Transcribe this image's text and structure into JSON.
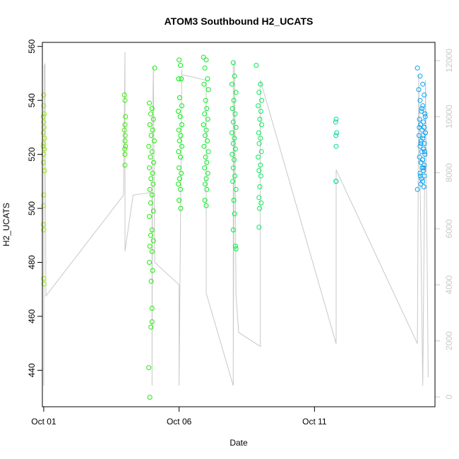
{
  "chart_data": {
    "type": "scatter",
    "title": "ATOM3 Southbound H2_UCATS",
    "xlabel": "Date",
    "ylabel": "H2_UCATS",
    "x_unit": "days",
    "xlim": [
      0.95,
      15.45
    ],
    "ylim": [
      426.5,
      561.5
    ],
    "x_ticks": [
      {
        "value": 1,
        "label": "Oct 01"
      },
      {
        "value": 6,
        "label": "Oct 06"
      },
      {
        "value": 11,
        "label": "Oct 11"
      }
    ],
    "y_ticks": [
      440,
      460,
      480,
      500,
      520,
      540,
      560
    ],
    "right_axis": {
      "ylim": [
        -350,
        12650
      ],
      "ticks": [
        0,
        2000,
        4000,
        6000,
        8000,
        10000,
        12000
      ],
      "color": "#c8c8c8"
    },
    "grid": false,
    "point_color_scale": [
      "#99ee00",
      "#00ee00",
      "#00ee88",
      "#0099ff"
    ],
    "h2_points": [
      {
        "x": 1.0,
        "y": 542
      },
      {
        "x": 1.0,
        "y": 538
      },
      {
        "x": 1.02,
        "y": 535
      },
      {
        "x": 0.98,
        "y": 534
      },
      {
        "x": 1.0,
        "y": 532
      },
      {
        "x": 1.01,
        "y": 530
      },
      {
        "x": 0.99,
        "y": 528
      },
      {
        "x": 1.03,
        "y": 526
      },
      {
        "x": 1.0,
        "y": 524
      },
      {
        "x": 0.98,
        "y": 523
      },
      {
        "x": 1.02,
        "y": 522
      },
      {
        "x": 1.0,
        "y": 520
      },
      {
        "x": 0.99,
        "y": 517
      },
      {
        "x": 1.03,
        "y": 514
      },
      {
        "x": 1.0,
        "y": 505
      },
      {
        "x": 1.0,
        "y": 501
      },
      {
        "x": 0.99,
        "y": 494
      },
      {
        "x": 1.0,
        "y": 492
      },
      {
        "x": 1.0,
        "y": 474
      },
      {
        "x": 1.01,
        "y": 472
      },
      {
        "x": 3.98,
        "y": 542
      },
      {
        "x": 4.0,
        "y": 540
      },
      {
        "x": 4.02,
        "y": 534
      },
      {
        "x": 4.0,
        "y": 531
      },
      {
        "x": 3.98,
        "y": 529
      },
      {
        "x": 4.01,
        "y": 527
      },
      {
        "x": 4.0,
        "y": 525
      },
      {
        "x": 4.02,
        "y": 523
      },
      {
        "x": 3.99,
        "y": 522
      },
      {
        "x": 4.0,
        "y": 520
      },
      {
        "x": 4.0,
        "y": 516
      },
      {
        "x": 4.9,
        "y": 539
      },
      {
        "x": 5.0,
        "y": 537
      },
      {
        "x": 4.95,
        "y": 535
      },
      {
        "x": 5.05,
        "y": 533
      },
      {
        "x": 4.92,
        "y": 531
      },
      {
        "x": 5.02,
        "y": 529
      },
      {
        "x": 4.97,
        "y": 527
      },
      {
        "x": 5.08,
        "y": 525
      },
      {
        "x": 4.88,
        "y": 523
      },
      {
        "x": 5.0,
        "y": 521
      },
      {
        "x": 4.94,
        "y": 519
      },
      {
        "x": 5.06,
        "y": 517
      },
      {
        "x": 4.9,
        "y": 515
      },
      {
        "x": 5.02,
        "y": 513
      },
      {
        "x": 4.96,
        "y": 511
      },
      {
        "x": 5.04,
        "y": 509
      },
      {
        "x": 4.92,
        "y": 507
      },
      {
        "x": 5.0,
        "y": 505
      },
      {
        "x": 4.95,
        "y": 502
      },
      {
        "x": 5.05,
        "y": 499
      },
      {
        "x": 4.9,
        "y": 497
      },
      {
        "x": 5.0,
        "y": 492
      },
      {
        "x": 4.95,
        "y": 490
      },
      {
        "x": 5.05,
        "y": 488
      },
      {
        "x": 4.92,
        "y": 486
      },
      {
        "x": 5.0,
        "y": 484
      },
      {
        "x": 4.9,
        "y": 480
      },
      {
        "x": 5.02,
        "y": 477
      },
      {
        "x": 4.97,
        "y": 473
      },
      {
        "x": 5.0,
        "y": 463
      },
      {
        "x": 5.0,
        "y": 458
      },
      {
        "x": 4.96,
        "y": 456
      },
      {
        "x": 4.88,
        "y": 441
      },
      {
        "x": 4.92,
        "y": 430
      },
      {
        "x": 5.1,
        "y": 552
      },
      {
        "x": 6.0,
        "y": 555
      },
      {
        "x": 6.05,
        "y": 553
      },
      {
        "x": 5.98,
        "y": 548
      },
      {
        "x": 6.08,
        "y": 548
      },
      {
        "x": 6.02,
        "y": 541
      },
      {
        "x": 6.1,
        "y": 538
      },
      {
        "x": 5.97,
        "y": 536
      },
      {
        "x": 6.04,
        "y": 534
      },
      {
        "x": 6.1,
        "y": 531
      },
      {
        "x": 5.99,
        "y": 529
      },
      {
        "x": 6.06,
        "y": 527
      },
      {
        "x": 6.02,
        "y": 525
      },
      {
        "x": 6.1,
        "y": 523
      },
      {
        "x": 5.98,
        "y": 521
      },
      {
        "x": 6.05,
        "y": 519
      },
      {
        "x": 6.0,
        "y": 515
      },
      {
        "x": 6.08,
        "y": 513
      },
      {
        "x": 6.02,
        "y": 511
      },
      {
        "x": 5.97,
        "y": 509
      },
      {
        "x": 6.05,
        "y": 507
      },
      {
        "x": 6.0,
        "y": 503
      },
      {
        "x": 6.06,
        "y": 500
      },
      {
        "x": 6.9,
        "y": 556
      },
      {
        "x": 7.0,
        "y": 555
      },
      {
        "x": 6.95,
        "y": 552
      },
      {
        "x": 7.05,
        "y": 548
      },
      {
        "x": 6.92,
        "y": 546
      },
      {
        "x": 7.08,
        "y": 544
      },
      {
        "x": 6.98,
        "y": 540
      },
      {
        "x": 7.02,
        "y": 537
      },
      {
        "x": 6.94,
        "y": 535
      },
      {
        "x": 7.06,
        "y": 533
      },
      {
        "x": 6.9,
        "y": 531
      },
      {
        "x": 7.0,
        "y": 529
      },
      {
        "x": 6.96,
        "y": 527
      },
      {
        "x": 7.04,
        "y": 525
      },
      {
        "x": 6.92,
        "y": 523
      },
      {
        "x": 7.08,
        "y": 521
      },
      {
        "x": 6.98,
        "y": 519
      },
      {
        "x": 7.02,
        "y": 517
      },
      {
        "x": 6.94,
        "y": 515
      },
      {
        "x": 7.06,
        "y": 513
      },
      {
        "x": 7.0,
        "y": 511
      },
      {
        "x": 6.96,
        "y": 509
      },
      {
        "x": 7.02,
        "y": 507
      },
      {
        "x": 6.95,
        "y": 503
      },
      {
        "x": 7.0,
        "y": 501
      },
      {
        "x": 8.0,
        "y": 554
      },
      {
        "x": 8.05,
        "y": 549
      },
      {
        "x": 7.95,
        "y": 546
      },
      {
        "x": 8.1,
        "y": 543
      },
      {
        "x": 8.02,
        "y": 540
      },
      {
        "x": 7.97,
        "y": 537
      },
      {
        "x": 8.07,
        "y": 535
      },
      {
        "x": 8.0,
        "y": 532
      },
      {
        "x": 8.1,
        "y": 530
      },
      {
        "x": 7.95,
        "y": 528
      },
      {
        "x": 8.04,
        "y": 526
      },
      {
        "x": 8.0,
        "y": 524
      },
      {
        "x": 8.08,
        "y": 522
      },
      {
        "x": 7.96,
        "y": 520
      },
      {
        "x": 8.03,
        "y": 518
      },
      {
        "x": 8.0,
        "y": 515
      },
      {
        "x": 8.06,
        "y": 512
      },
      {
        "x": 7.98,
        "y": 510
      },
      {
        "x": 8.1,
        "y": 507
      },
      {
        "x": 8.02,
        "y": 503
      },
      {
        "x": 8.05,
        "y": 498
      },
      {
        "x": 8.0,
        "y": 492
      },
      {
        "x": 8.08,
        "y": 486
      },
      {
        "x": 8.1,
        "y": 485
      },
      {
        "x": 8.85,
        "y": 553
      },
      {
        "x": 9.0,
        "y": 546
      },
      {
        "x": 8.95,
        "y": 543
      },
      {
        "x": 9.05,
        "y": 540
      },
      {
        "x": 8.92,
        "y": 538
      },
      {
        "x": 9.02,
        "y": 536
      },
      {
        "x": 8.98,
        "y": 533
      },
      {
        "x": 9.05,
        "y": 531
      },
      {
        "x": 8.94,
        "y": 528
      },
      {
        "x": 9.0,
        "y": 526
      },
      {
        "x": 8.96,
        "y": 524
      },
      {
        "x": 9.04,
        "y": 521
      },
      {
        "x": 8.92,
        "y": 519
      },
      {
        "x": 9.0,
        "y": 516
      },
      {
        "x": 8.95,
        "y": 514
      },
      {
        "x": 9.02,
        "y": 512
      },
      {
        "x": 8.98,
        "y": 508
      },
      {
        "x": 8.95,
        "y": 504
      },
      {
        "x": 9.03,
        "y": 502
      },
      {
        "x": 8.97,
        "y": 500
      },
      {
        "x": 8.95,
        "y": 493
      },
      {
        "x": 11.8,
        "y": 533
      },
      {
        "x": 11.78,
        "y": 532
      },
      {
        "x": 11.82,
        "y": 528
      },
      {
        "x": 11.79,
        "y": 527
      },
      {
        "x": 11.8,
        "y": 523
      },
      {
        "x": 11.8,
        "y": 510
      },
      {
        "x": 11.79,
        "y": 510
      },
      {
        "x": 14.8,
        "y": 552
      },
      {
        "x": 14.9,
        "y": 549
      },
      {
        "x": 15.0,
        "y": 546
      },
      {
        "x": 14.85,
        "y": 544
      },
      {
        "x": 15.05,
        "y": 542
      },
      {
        "x": 14.9,
        "y": 540
      },
      {
        "x": 15.0,
        "y": 538
      },
      {
        "x": 14.95,
        "y": 536
      },
      {
        "x": 15.08,
        "y": 535
      },
      {
        "x": 14.88,
        "y": 533
      },
      {
        "x": 15.02,
        "y": 532
      },
      {
        "x": 14.92,
        "y": 531
      },
      {
        "x": 15.05,
        "y": 530
      },
      {
        "x": 14.97,
        "y": 529
      },
      {
        "x": 15.1,
        "y": 528
      },
      {
        "x": 14.86,
        "y": 527
      },
      {
        "x": 15.0,
        "y": 526
      },
      {
        "x": 14.94,
        "y": 525
      },
      {
        "x": 15.06,
        "y": 524
      },
      {
        "x": 14.9,
        "y": 523
      },
      {
        "x": 15.03,
        "y": 522
      },
      {
        "x": 14.96,
        "y": 521
      },
      {
        "x": 15.08,
        "y": 520
      },
      {
        "x": 14.88,
        "y": 519
      },
      {
        "x": 15.0,
        "y": 518
      },
      {
        "x": 14.93,
        "y": 517
      },
      {
        "x": 15.05,
        "y": 516
      },
      {
        "x": 14.98,
        "y": 515
      },
      {
        "x": 15.02,
        "y": 514
      },
      {
        "x": 14.9,
        "y": 513
      },
      {
        "x": 15.06,
        "y": 512
      },
      {
        "x": 14.95,
        "y": 511
      },
      {
        "x": 15.0,
        "y": 510
      },
      {
        "x": 14.92,
        "y": 509
      },
      {
        "x": 15.04,
        "y": 508
      },
      {
        "x": 14.97,
        "y": 537
      },
      {
        "x": 15.09,
        "y": 534
      },
      {
        "x": 14.87,
        "y": 530
      },
      {
        "x": 15.01,
        "y": 527
      },
      {
        "x": 14.93,
        "y": 524
      },
      {
        "x": 15.07,
        "y": 521
      },
      {
        "x": 14.99,
        "y": 518
      },
      {
        "x": 15.03,
        "y": 515
      },
      {
        "x": 14.91,
        "y": 512
      },
      {
        "x": 14.8,
        "y": 507
      }
    ],
    "altitude_line": {
      "axis": "right",
      "x": [
        1.0,
        1.02,
        1.05,
        1.08,
        3.95,
        4.0,
        4.0,
        4.0,
        4.3,
        5.0,
        5.0,
        5.02,
        5.05,
        5.1,
        6.0,
        6.0,
        6.1,
        6.1,
        6.1,
        7.0,
        7.0,
        8.0,
        8.0,
        8.0,
        8.0,
        8.05,
        8.1,
        8.2,
        9.0,
        9.0,
        9.0,
        11.8,
        11.8,
        14.8,
        14.85,
        15.0,
        15.1,
        15.2
      ],
      "y": [
        400,
        11800,
        11900,
        3600,
        7200,
        12300,
        7200,
        5200,
        7200,
        7300,
        400,
        9500,
        11800,
        4800,
        4000,
        400,
        11700,
        11400,
        11500,
        11300,
        3700,
        400,
        11900,
        11900,
        1300,
        12000,
        3600,
        2300,
        1800,
        4400,
        11300,
        1900,
        8100,
        1900,
        11500,
        400,
        11300,
        700
      ]
    }
  }
}
